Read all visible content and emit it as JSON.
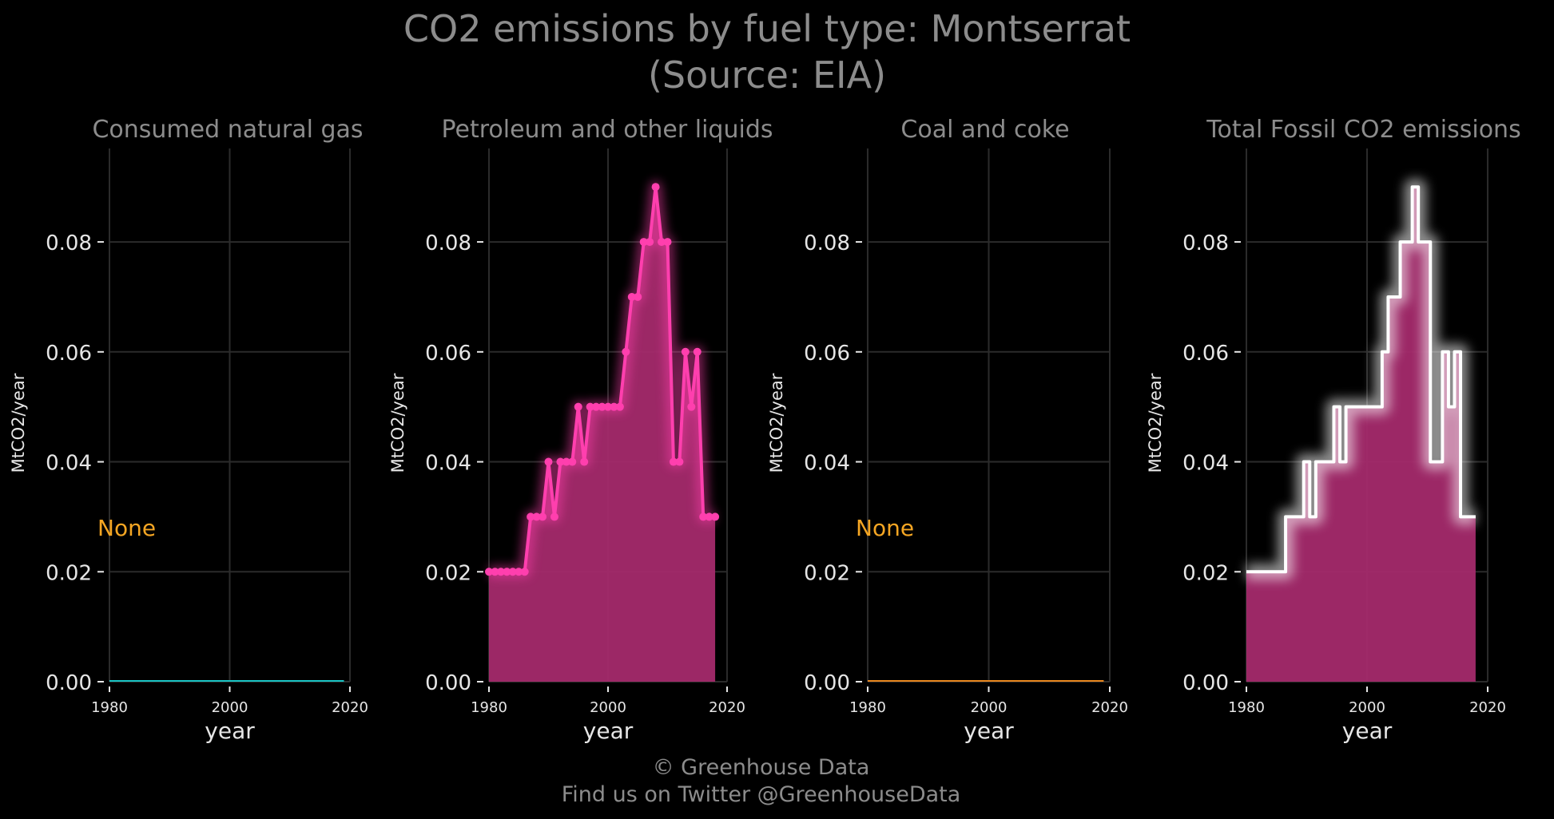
{
  "title_line1": "CO2 emissions by fuel type: Montserrat",
  "title_line2": "(Source: EIA)",
  "footer_line1": "© Greenhouse Data",
  "footer_line2": "Find us on Twitter @GreenhouseData",
  "colors": {
    "background": "#000000",
    "grid": "#2b2b2b",
    "title_text": "#8c8c8c",
    "tick_text": "#e6e6e6",
    "none_label": "#f5a623",
    "natural_gas": "#19c3c3",
    "petroleum": "#ff3fae",
    "petroleum_fill": "#a42a6c",
    "coal": "#e8871e",
    "total_line": "#ffffff",
    "total_fill": "#a42a6c"
  },
  "chart_data": [
    {
      "type": "line",
      "title": "Consumed natural gas",
      "xlabel": "year",
      "ylabel": "MtCO2/year",
      "xlim": [
        1980,
        2020
      ],
      "ylim": [
        0,
        0.097
      ],
      "x_ticks": [
        "1980",
        "2000",
        "2020"
      ],
      "y_ticks": [
        "0.00",
        "0.02",
        "0.04",
        "0.06",
        "0.08"
      ],
      "grid": true,
      "annotation": "None",
      "series": [
        {
          "x": [
            1980,
            2019
          ],
          "y": [
            0,
            0
          ]
        }
      ]
    },
    {
      "type": "area",
      "title": "Petroleum and other liquids",
      "xlabel": "year",
      "ylabel": "MtCO2/year",
      "xlim": [
        1980,
        2020
      ],
      "ylim": [
        0,
        0.097
      ],
      "x_ticks": [
        "1980",
        "2000",
        "2020"
      ],
      "y_ticks": [
        "0.00",
        "0.02",
        "0.04",
        "0.06",
        "0.08"
      ],
      "grid": true,
      "series": [
        {
          "x": [
            1980,
            1981,
            1982,
            1983,
            1984,
            1985,
            1986,
            1987,
            1988,
            1989,
            1990,
            1991,
            1992,
            1993,
            1994,
            1995,
            1996,
            1997,
            1998,
            1999,
            2000,
            2001,
            2002,
            2003,
            2004,
            2005,
            2006,
            2007,
            2008,
            2009,
            2010,
            2011,
            2012,
            2013,
            2014,
            2015,
            2016,
            2017,
            2018
          ],
          "y": [
            0.02,
            0.02,
            0.02,
            0.02,
            0.02,
            0.02,
            0.02,
            0.03,
            0.03,
            0.03,
            0.04,
            0.03,
            0.04,
            0.04,
            0.04,
            0.05,
            0.04,
            0.05,
            0.05,
            0.05,
            0.05,
            0.05,
            0.05,
            0.06,
            0.07,
            0.07,
            0.08,
            0.08,
            0.09,
            0.08,
            0.08,
            0.04,
            0.04,
            0.06,
            0.05,
            0.06,
            0.03,
            0.03,
            0.03
          ]
        }
      ]
    },
    {
      "type": "line",
      "title": "Coal and coke",
      "xlabel": "year",
      "ylabel": "MtCO2/year",
      "xlim": [
        1980,
        2020
      ],
      "ylim": [
        0,
        0.097
      ],
      "x_ticks": [
        "1980",
        "2000",
        "2020"
      ],
      "y_ticks": [
        "0.00",
        "0.02",
        "0.04",
        "0.06",
        "0.08"
      ],
      "grid": true,
      "annotation": "None",
      "series": [
        {
          "x": [
            1980,
            2019
          ],
          "y": [
            0,
            0
          ]
        }
      ]
    },
    {
      "type": "area",
      "title": "Total Fossil CO2 emissions",
      "xlabel": "year",
      "ylabel": "MtCO2/year",
      "xlim": [
        1980,
        2020
      ],
      "ylim": [
        0,
        0.097
      ],
      "x_ticks": [
        "1980",
        "2000",
        "2020"
      ],
      "y_ticks": [
        "0.00",
        "0.02",
        "0.04",
        "0.06",
        "0.08"
      ],
      "grid": true,
      "series": [
        {
          "x": [
            1980,
            1981,
            1982,
            1983,
            1984,
            1985,
            1986,
            1987,
            1988,
            1989,
            1990,
            1991,
            1992,
            1993,
            1994,
            1995,
            1996,
            1997,
            1998,
            1999,
            2000,
            2001,
            2002,
            2003,
            2004,
            2005,
            2006,
            2007,
            2008,
            2009,
            2010,
            2011,
            2012,
            2013,
            2014,
            2015,
            2016,
            2017,
            2018
          ],
          "y": [
            0.02,
            0.02,
            0.02,
            0.02,
            0.02,
            0.02,
            0.02,
            0.03,
            0.03,
            0.03,
            0.04,
            0.03,
            0.04,
            0.04,
            0.04,
            0.05,
            0.04,
            0.05,
            0.05,
            0.05,
            0.05,
            0.05,
            0.05,
            0.06,
            0.07,
            0.07,
            0.08,
            0.08,
            0.09,
            0.08,
            0.08,
            0.04,
            0.04,
            0.06,
            0.05,
            0.06,
            0.03,
            0.03,
            0.03
          ]
        }
      ]
    }
  ]
}
